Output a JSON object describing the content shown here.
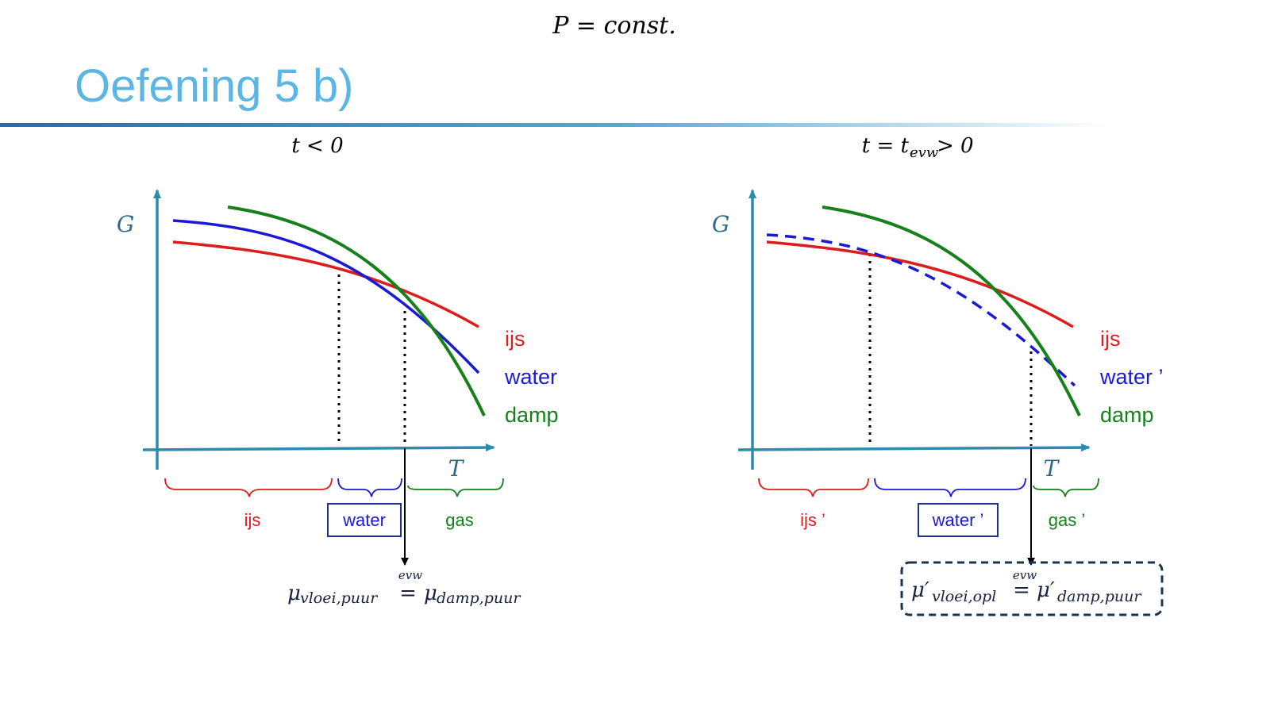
{
  "header": {
    "condition": "P = const.",
    "title": "Oefening 5 b)"
  },
  "colors": {
    "title": "#5bb6e3",
    "axis": "#2e8bb0",
    "ijs": "#dd1c1c",
    "water": "#1a1ad6",
    "damp": "#16801a",
    "box_border": "#1f2f8f",
    "dashed_box": "#1a3550"
  },
  "panels": [
    {
      "heading": "t < 0",
      "y_axis_label": "G",
      "x_axis_label": "T",
      "legend": {
        "ijs": "ijs",
        "water": "water",
        "damp": "damp"
      },
      "regions": {
        "ijs": "ijs",
        "water": "water",
        "gas": "gas"
      },
      "equation": {
        "lhs": "μ",
        "lhs_sub": "vloei,puur",
        "op": "=",
        "op_sup": "evw",
        "rhs": "μ",
        "rhs_sub": "damp,puur"
      }
    },
    {
      "heading": "t = t",
      "heading_sub": "evw",
      "heading_tail": " > 0",
      "y_axis_label": "G",
      "x_axis_label": "T",
      "legend": {
        "ijs": "ijs",
        "water": "water ’",
        "damp": "damp"
      },
      "regions": {
        "ijs": "ijs ’",
        "water": "water ’",
        "gas": "gas ’"
      },
      "equation": {
        "lhs": "μ′",
        "lhs_sub": "vloei,opl",
        "op": "=",
        "op_sup": "evw",
        "rhs": "μ′",
        "rhs_sub": "damp,puur"
      }
    }
  ]
}
